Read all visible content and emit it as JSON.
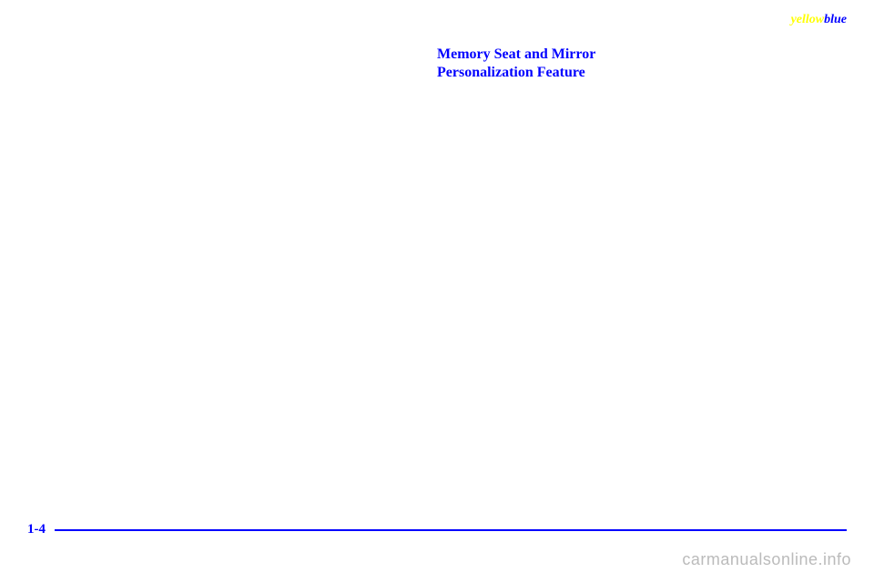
{
  "header": {
    "brand_yellow": "yellow",
    "brand_blue": "blue"
  },
  "heading": {
    "line1": "Memory Seat and Mirror",
    "line2": "Personalization Feature"
  },
  "footer": {
    "page_number": "1-4"
  },
  "watermark": "carmanualsonline.info",
  "colors": {
    "accent": "#0000ff",
    "highlight": "#ffff00",
    "background": "#ffffff",
    "watermark": "#bbbbbb"
  }
}
